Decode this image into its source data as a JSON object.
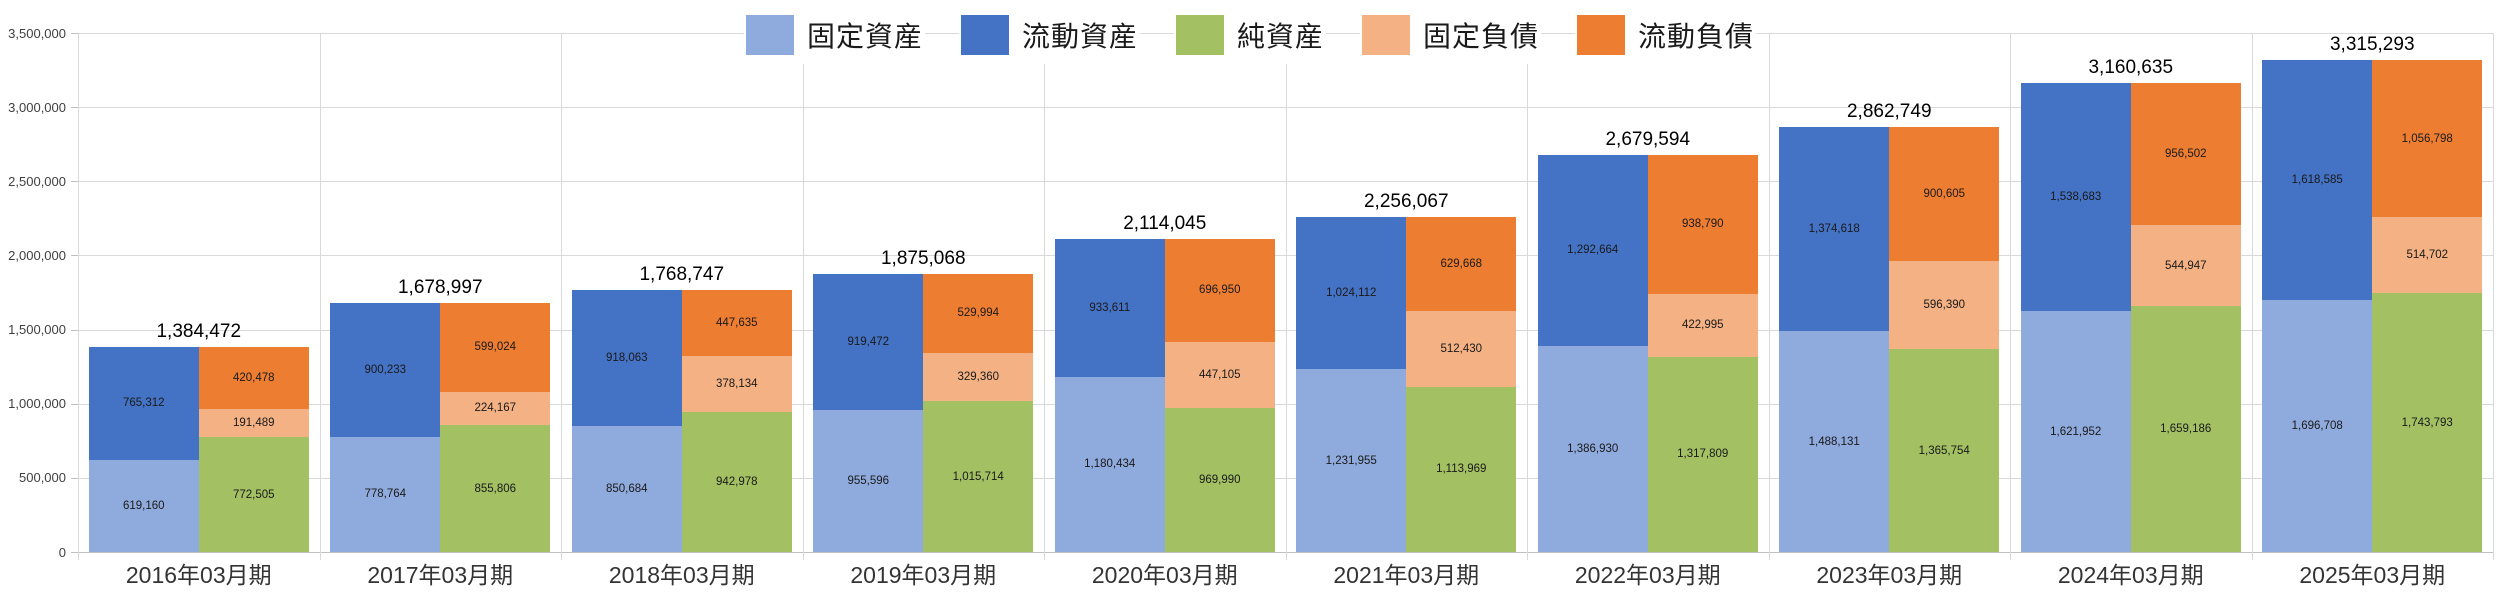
{
  "chart_data": {
    "type": "bar",
    "subtype": "paired-stacked-columns",
    "title": "",
    "xlabel": "",
    "ylabel": "",
    "ylim": [
      0,
      3500000
    ],
    "y_tick_step": 500000,
    "y_tick_labels": [
      "0",
      "500,000",
      "1,000,000",
      "1,500,000",
      "2,000,000",
      "2,500,000",
      "3,000,000",
      "3,500,000"
    ],
    "grid": true,
    "legend_position": "top-center",
    "categories": [
      "2016年03月期",
      "2017年03月期",
      "2018年03月期",
      "2019年03月期",
      "2020年03月期",
      "2021年03月期",
      "2022年03月期",
      "2023年03月期",
      "2024年03月期",
      "2025年03月期"
    ],
    "series": [
      {
        "name": "固定資産",
        "bar": "left",
        "stack_order": 0,
        "color": "#8FAADC",
        "values": [
          619160,
          778764,
          850684,
          955596,
          1180434,
          1231955,
          1386930,
          1488131,
          1621952,
          1696708
        ]
      },
      {
        "name": "流動資産",
        "bar": "left",
        "stack_order": 1,
        "color": "#4472C4",
        "values": [
          765312,
          900233,
          918063,
          919472,
          933611,
          1024112,
          1292664,
          1374618,
          1538683,
          1618585
        ]
      },
      {
        "name": "純資産",
        "bar": "right",
        "stack_order": 0,
        "color": "#A3C063",
        "values": [
          772505,
          855806,
          942978,
          1015714,
          969990,
          1113969,
          1317809,
          1365754,
          1659186,
          1743793
        ]
      },
      {
        "name": "固定負債",
        "bar": "right",
        "stack_order": 1,
        "color": "#F4B183",
        "values": [
          191489,
          224167,
          378134,
          329360,
          447105,
          512430,
          422995,
          596390,
          544947,
          514702
        ]
      },
      {
        "name": "流動負債",
        "bar": "right",
        "stack_order": 2,
        "color": "#ED7D31",
        "values": [
          420478,
          599024,
          447635,
          529994,
          696950,
          629668,
          938790,
          900605,
          956502,
          1056798
        ]
      }
    ],
    "totals": [
      1384472,
      1678997,
      1768747,
      1875068,
      2114045,
      2256067,
      2679594,
      2862749,
      3160635,
      3315293
    ],
    "colors": {
      "grid": "#D9D9D9",
      "axis": "#C0C0C0",
      "text": "#333333"
    }
  }
}
